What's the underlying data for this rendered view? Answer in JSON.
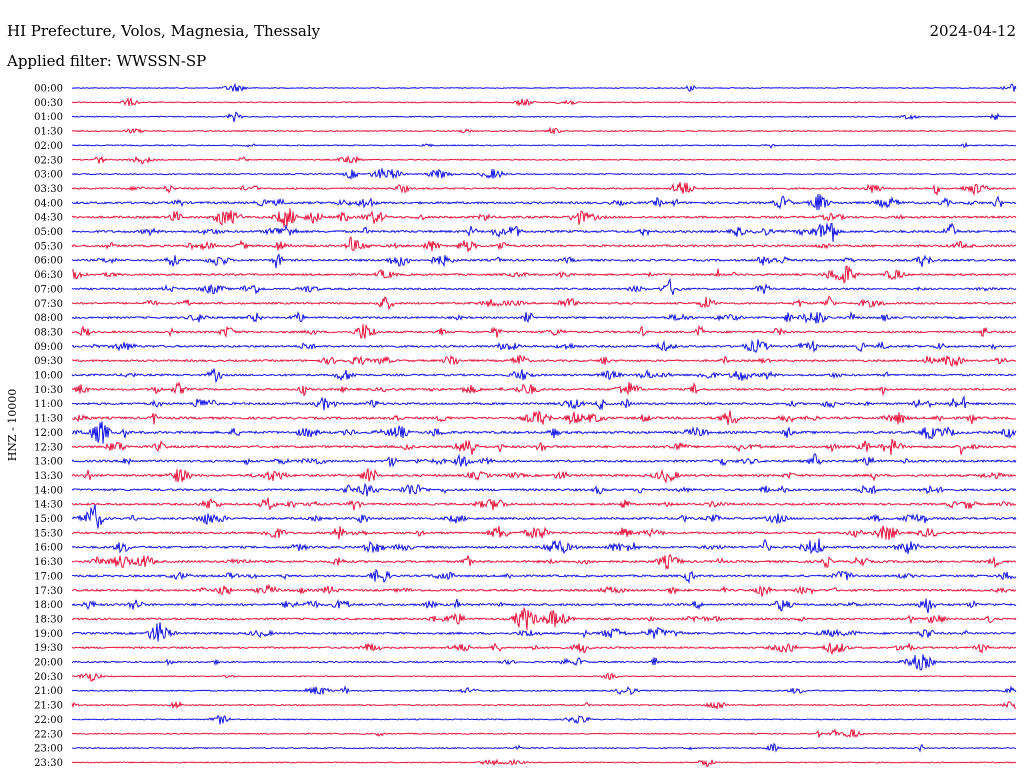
{
  "header": {
    "station": "HI Prefecture, Volos, Magnesia, Thessaly",
    "date": "2024-04-12",
    "filter": "Applied filter: WWSSN-SP"
  },
  "chart_data": {
    "type": "line",
    "title": "",
    "ylabel": "HNZ - 10000",
    "xlabel": "",
    "grid": false,
    "legend": "none",
    "colors": {
      "even_rows": "#1414e6",
      "odd_rows": "#e6143c"
    },
    "rows": [
      {
        "label": "00:00",
        "activity": 0.1
      },
      {
        "label": "00:30",
        "activity": 0.1
      },
      {
        "label": "01:00",
        "activity": 0.1
      },
      {
        "label": "01:30",
        "activity": 0.12
      },
      {
        "label": "02:00",
        "activity": 0.15
      },
      {
        "label": "02:30",
        "activity": 0.15
      },
      {
        "label": "03:00",
        "activity": 0.18
      },
      {
        "label": "03:30",
        "activity": 0.35
      },
      {
        "label": "04:00",
        "activity": 0.55
      },
      {
        "label": "04:30",
        "activity": 0.55
      },
      {
        "label": "05:00",
        "activity": 0.6
      },
      {
        "label": "05:30",
        "activity": 0.55
      },
      {
        "label": "06:00",
        "activity": 0.5
      },
      {
        "label": "06:30",
        "activity": 0.45
      },
      {
        "label": "07:00",
        "activity": 0.4
      },
      {
        "label": "07:30",
        "activity": 0.45
      },
      {
        "label": "08:00",
        "activity": 0.45
      },
      {
        "label": "08:30",
        "activity": 0.5
      },
      {
        "label": "09:00",
        "activity": 0.5
      },
      {
        "label": "09:30",
        "activity": 0.45
      },
      {
        "label": "10:00",
        "activity": 0.45
      },
      {
        "label": "10:30",
        "activity": 0.5
      },
      {
        "label": "11:00",
        "activity": 0.55
      },
      {
        "label": "11:30",
        "activity": 0.6
      },
      {
        "label": "12:00",
        "activity": 0.65
      },
      {
        "label": "12:30",
        "activity": 0.6
      },
      {
        "label": "13:00",
        "activity": 0.55
      },
      {
        "label": "13:30",
        "activity": 0.55
      },
      {
        "label": "14:00",
        "activity": 0.55
      },
      {
        "label": "14:30",
        "activity": 0.5
      },
      {
        "label": "15:00",
        "activity": 0.55
      },
      {
        "label": "15:30",
        "activity": 0.5
      },
      {
        "label": "16:00",
        "activity": 0.55
      },
      {
        "label": "16:30",
        "activity": 0.55
      },
      {
        "label": "17:00",
        "activity": 0.5
      },
      {
        "label": "17:30",
        "activity": 0.5
      },
      {
        "label": "18:00",
        "activity": 0.55
      },
      {
        "label": "18:30",
        "activity": 0.5
      },
      {
        "label": "19:00",
        "activity": 0.5
      },
      {
        "label": "19:30",
        "activity": 0.4
      },
      {
        "label": "20:00",
        "activity": 0.3
      },
      {
        "label": "20:30",
        "activity": 0.12
      },
      {
        "label": "21:00",
        "activity": 0.2
      },
      {
        "label": "21:30",
        "activity": 0.18
      },
      {
        "label": "22:00",
        "activity": 0.12
      },
      {
        "label": "22:30",
        "activity": 0.15
      },
      {
        "label": "23:00",
        "activity": 0.15
      },
      {
        "label": "23:30",
        "activity": 0.12
      }
    ]
  }
}
